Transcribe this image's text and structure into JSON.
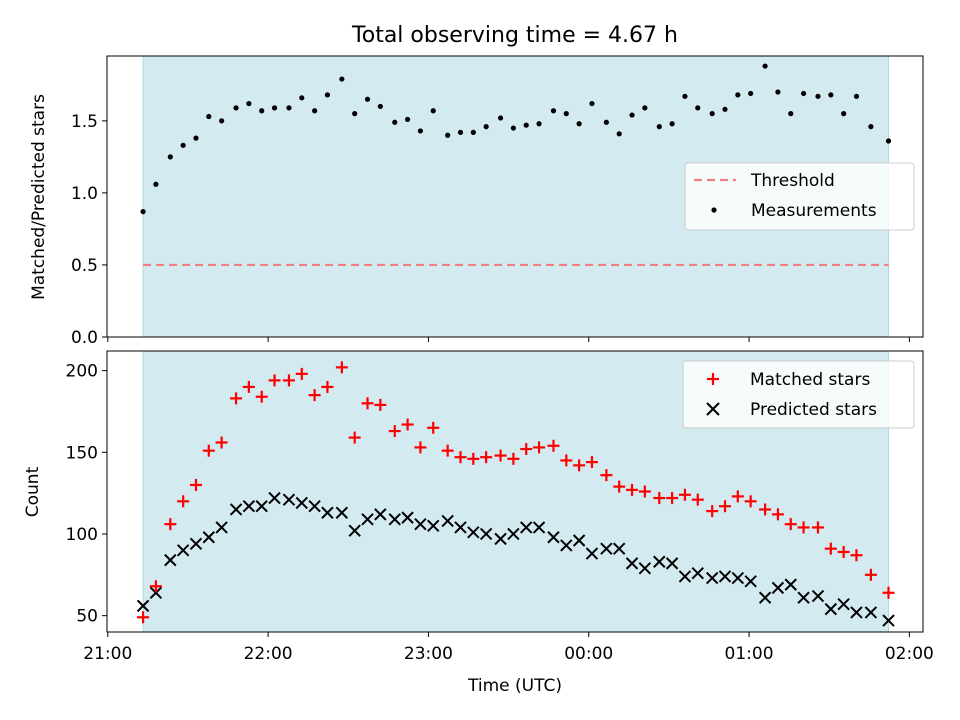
{
  "title": "Total observing time = 4.67 h",
  "colors": {
    "observing_span": "#d3eaf0",
    "observing_edge": "#b0d8e2",
    "threshold": "#f08080",
    "measurements": "#000000",
    "matched": "#ff0000",
    "predicted": "#000000"
  },
  "chart_data": [
    {
      "type": "scatter",
      "name": "ratio",
      "ylabel": "Matched/Predicted stars",
      "ylim": [
        0,
        1.95
      ],
      "yticks": [
        0.0,
        0.5,
        1.0,
        1.5
      ],
      "ytick_labels": [
        "0.0",
        "0.5",
        "1.0",
        "1.5"
      ],
      "observing_span": [
        21.22,
        25.87
      ],
      "legend_position": "center-right",
      "threshold": {
        "label": "Threshold",
        "value": 0.5,
        "style": "dashed"
      },
      "series": [
        {
          "name": "Measurements",
          "marker": "dot",
          "x": [
            21.22,
            21.3,
            21.39,
            21.47,
            21.55,
            21.63,
            21.71,
            21.8,
            21.88,
            21.96,
            22.04,
            22.13,
            22.21,
            22.29,
            22.37,
            22.46,
            22.54,
            22.62,
            22.7,
            22.79,
            22.87,
            22.95,
            23.03,
            23.12,
            23.2,
            23.28,
            23.36,
            23.45,
            23.53,
            23.61,
            23.69,
            23.78,
            23.86,
            23.94,
            24.02,
            24.11,
            24.19,
            24.27,
            24.35,
            24.44,
            24.52,
            24.6,
            24.68,
            24.77,
            24.85,
            24.93,
            25.01,
            25.1,
            25.18,
            25.26,
            25.34,
            25.43,
            25.51,
            25.59,
            25.67,
            25.76,
            25.87
          ],
          "y": [
            0.87,
            1.06,
            1.25,
            1.33,
            1.38,
            1.53,
            1.5,
            1.59,
            1.62,
            1.57,
            1.59,
            1.59,
            1.66,
            1.57,
            1.68,
            1.79,
            1.55,
            1.65,
            1.6,
            1.49,
            1.51,
            1.43,
            1.57,
            1.4,
            1.42,
            1.42,
            1.46,
            1.52,
            1.45,
            1.47,
            1.48,
            1.57,
            1.55,
            1.48,
            1.62,
            1.49,
            1.41,
            1.54,
            1.59,
            1.46,
            1.48,
            1.67,
            1.59,
            1.55,
            1.58,
            1.68,
            1.69,
            1.88,
            1.7,
            1.55,
            1.69,
            1.67,
            1.68,
            1.55,
            1.67,
            1.46,
            1.36
          ]
        }
      ]
    },
    {
      "type": "scatter",
      "name": "counts",
      "xlabel": "Time (UTC)",
      "ylabel": "Count",
      "ylim": [
        40,
        212
      ],
      "yticks": [
        50,
        100,
        150,
        200
      ],
      "ytick_labels": [
        "50",
        "100",
        "150",
        "200"
      ],
      "xlim": [
        20.995,
        26.085
      ],
      "xticks": [
        21,
        22,
        23,
        24,
        25,
        26
      ],
      "xtick_labels": [
        "21:00",
        "22:00",
        "23:00",
        "00:00",
        "01:00",
        "02:00"
      ],
      "observing_span": [
        21.22,
        25.87
      ],
      "legend_position": "top-right",
      "series": [
        {
          "name": "Matched stars",
          "marker": "plus",
          "x": [
            21.22,
            21.3,
            21.39,
            21.47,
            21.55,
            21.63,
            21.71,
            21.8,
            21.88,
            21.96,
            22.04,
            22.13,
            22.21,
            22.29,
            22.37,
            22.46,
            22.54,
            22.62,
            22.7,
            22.79,
            22.87,
            22.95,
            23.03,
            23.12,
            23.2,
            23.28,
            23.36,
            23.45,
            23.53,
            23.61,
            23.69,
            23.78,
            23.86,
            23.94,
            24.02,
            24.11,
            24.19,
            24.27,
            24.35,
            24.44,
            24.52,
            24.6,
            24.68,
            24.77,
            24.85,
            24.93,
            25.01,
            25.1,
            25.18,
            25.26,
            25.34,
            25.43,
            25.51,
            25.59,
            25.67,
            25.76,
            25.87
          ],
          "y": [
            49,
            68,
            106,
            120,
            130,
            151,
            156,
            183,
            190,
            184,
            194,
            194,
            198,
            185,
            190,
            202,
            159,
            180,
            179,
            163,
            167,
            153,
            165,
            151,
            147,
            146,
            147,
            148,
            146,
            152,
            153,
            154,
            145,
            142,
            144,
            136,
            129,
            127,
            126,
            122,
            122,
            124,
            121,
            114,
            117,
            123,
            120,
            115,
            112,
            106,
            104,
            104,
            91,
            89,
            87,
            75,
            64
          ]
        },
        {
          "name": "Predicted stars",
          "marker": "x",
          "x": [
            21.22,
            21.3,
            21.39,
            21.47,
            21.55,
            21.63,
            21.71,
            21.8,
            21.88,
            21.96,
            22.04,
            22.13,
            22.21,
            22.29,
            22.37,
            22.46,
            22.54,
            22.62,
            22.7,
            22.79,
            22.87,
            22.95,
            23.03,
            23.12,
            23.2,
            23.28,
            23.36,
            23.45,
            23.53,
            23.61,
            23.69,
            23.78,
            23.86,
            23.94,
            24.02,
            24.11,
            24.19,
            24.27,
            24.35,
            24.44,
            24.52,
            24.6,
            24.68,
            24.77,
            24.85,
            24.93,
            25.01,
            25.1,
            25.18,
            25.26,
            25.34,
            25.43,
            25.51,
            25.59,
            25.67,
            25.76,
            25.87
          ],
          "y": [
            56,
            64,
            84,
            90,
            94,
            98,
            104,
            115,
            117,
            117,
            122,
            121,
            119,
            117,
            113,
            113,
            102,
            109,
            112,
            109,
            110,
            106,
            105,
            108,
            104,
            101,
            100,
            97,
            100,
            104,
            104,
            98,
            93,
            96,
            88,
            91,
            91,
            82,
            79,
            83,
            82,
            74,
            76,
            73,
            74,
            73,
            71,
            61,
            67,
            69,
            61,
            62,
            54,
            57,
            52,
            52,
            47
          ]
        }
      ]
    }
  ]
}
